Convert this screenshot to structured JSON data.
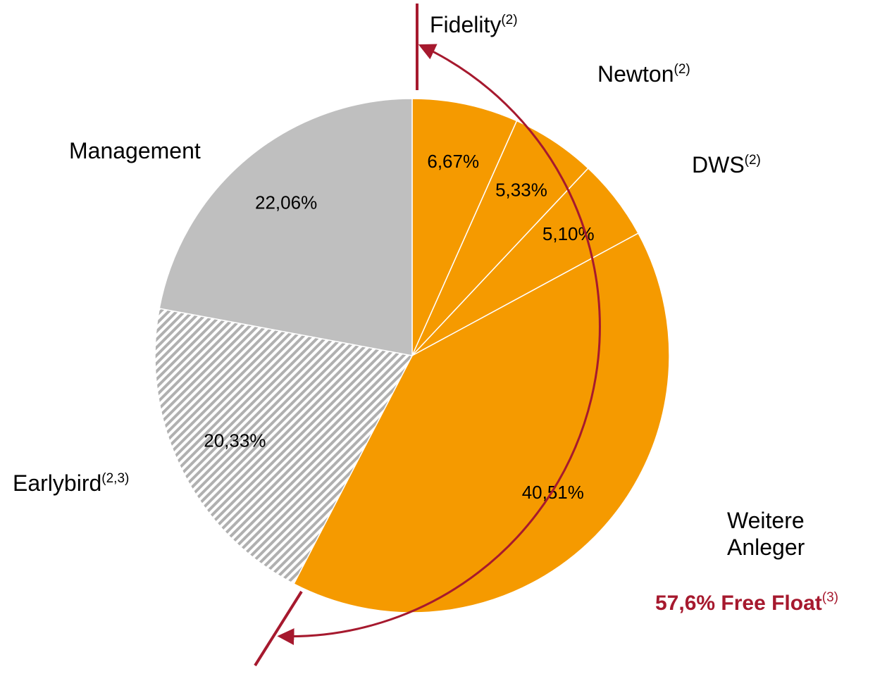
{
  "chart_data": {
    "type": "pie",
    "categories": [
      "Fidelity",
      "Newton",
      "DWS",
      "Weitere Anleger",
      "Earlybird",
      "Management"
    ],
    "category_notes": [
      "(2)",
      "(2)",
      "(2)",
      null,
      "(2,3)",
      null
    ],
    "values": [
      6.67,
      5.33,
      5.1,
      40.51,
      20.33,
      22.06
    ],
    "value_labels": [
      "6,67%",
      "5,33%",
      "5,10%",
      "40,51%",
      "20,33%",
      "22,06%"
    ],
    "colors": [
      "#f59a00",
      "#f59a00",
      "#f59a00",
      "#f59a00",
      "hatch",
      "#bfbfbf"
    ],
    "annotation": {
      "text": "57,6% Free Float",
      "note": "(3)"
    }
  }
}
